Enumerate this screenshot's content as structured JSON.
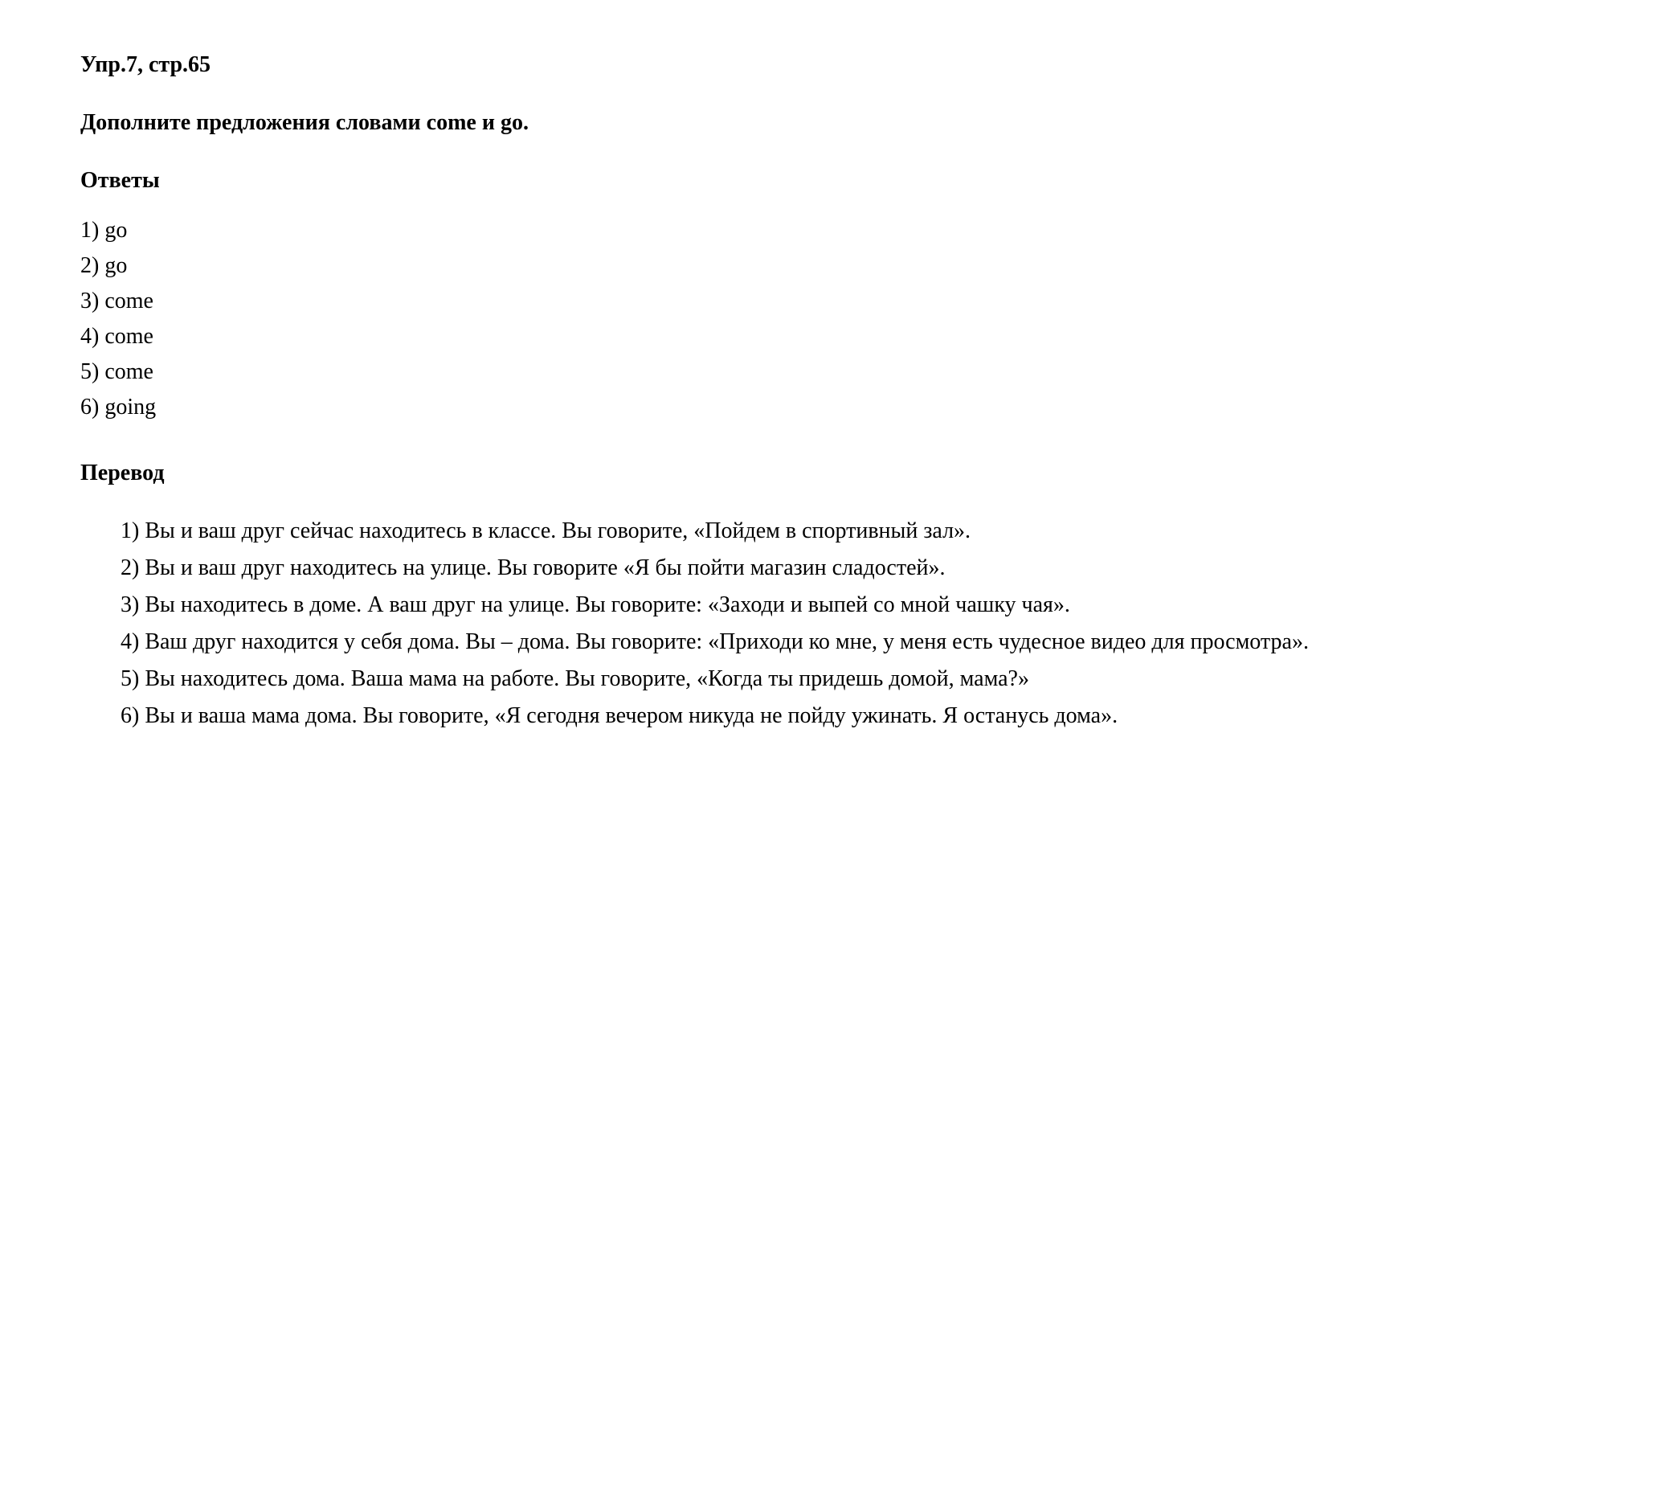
{
  "header": "Упр.7, стр.65",
  "instruction": "Дополните предложения словами come и go.",
  "answers_title": "Ответы",
  "answers": [
    "1) go",
    "2) go",
    "3) come",
    "4) come",
    "5) come",
    "6) going"
  ],
  "translation_title": "Перевод",
  "translations": [
    "1) Вы и ваш друг сейчас находитесь в классе. Вы говорите, «Пойдем в спортивный зал».",
    "2) Вы и ваш друг находитесь на улице. Вы говорите «Я бы пойти магазин сладостей».",
    "3) Вы находитесь в доме. А ваш друг на улице. Вы говорите: «Заходи и выпей со мной чашку чая».",
    "4) Ваш друг находится у себя дома. Вы – дома. Вы говорите: «Приходи ко мне, у меня есть чудесное видео для просмотра».",
    "5) Вы находитесь дома. Ваша мама на работе. Вы говорите, «Когда ты придешь домой, мама?»",
    "6) Вы и ваша мама дома. Вы говорите, «Я сегодня вечером никуда не пойду ужинать. Я останусь дома»."
  ],
  "colors": {
    "background": "#ffffff",
    "text": "#000000"
  },
  "typography": {
    "font_family": "Times New Roman",
    "body_fontsize": 28,
    "header_fontweight": "bold",
    "instruction_fontweight": "bold",
    "section_title_fontweight": "bold"
  }
}
